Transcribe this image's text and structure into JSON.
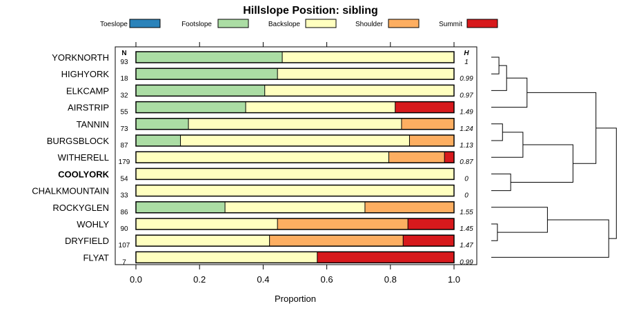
{
  "chart_data": {
    "type": "bar",
    "orientation": "horizontal",
    "stacked": true,
    "title": "Hillslope Position: sibling",
    "xlabel": "Proportion",
    "ylabel": "",
    "xlim": [
      0,
      1
    ],
    "x_ticks": [
      "0.0",
      "0.2",
      "0.4",
      "0.6",
      "0.8",
      "1.0"
    ],
    "n_header": "N",
    "h_header": "H",
    "highlighted": "COOLYORK",
    "legend_position": "top",
    "series": [
      {
        "name": "Toeslope",
        "color": "#2b83ba"
      },
      {
        "name": "Footslope",
        "color": "#abdda4"
      },
      {
        "name": "Backslope",
        "color": "#ffffbf"
      },
      {
        "name": "Shoulder",
        "color": "#fdae61"
      },
      {
        "name": "Summit",
        "color": "#d7191c"
      }
    ],
    "categories": [
      {
        "name": "YORKNORTH",
        "n": "93",
        "h": "1",
        "values": [
          0,
          0.46,
          0.54,
          0,
          0
        ]
      },
      {
        "name": "HIGHYORK",
        "n": "18",
        "h": "0.99",
        "values": [
          0,
          0.445,
          0.555,
          0,
          0
        ]
      },
      {
        "name": "ELKCAMP",
        "n": "32",
        "h": "0.97",
        "values": [
          0,
          0.405,
          0.595,
          0,
          0
        ]
      },
      {
        "name": "AIRSTRIP",
        "n": "55",
        "h": "1.49",
        "values": [
          0,
          0.345,
          0.47,
          0,
          0.185
        ]
      },
      {
        "name": "TANNIN",
        "n": "73",
        "h": "1.24",
        "values": [
          0,
          0.165,
          0.67,
          0.165,
          0
        ]
      },
      {
        "name": "BURGSBLOCK",
        "n": "87",
        "h": "1.13",
        "values": [
          0,
          0.14,
          0.72,
          0.14,
          0
        ]
      },
      {
        "name": "WITHERELL",
        "n": "179",
        "h": "0.87",
        "values": [
          0,
          0,
          0.795,
          0.175,
          0.03
        ]
      },
      {
        "name": "COOLYORK",
        "n": "54",
        "h": "0",
        "values": [
          0,
          0,
          1,
          0,
          0
        ]
      },
      {
        "name": "CHALKMOUNTAIN",
        "n": "33",
        "h": "0",
        "values": [
          0,
          0,
          1,
          0,
          0
        ]
      },
      {
        "name": "ROCKYGLEN",
        "n": "86",
        "h": "1.55",
        "values": [
          0,
          0.28,
          0.44,
          0.28,
          0
        ]
      },
      {
        "name": "WOHLY",
        "n": "90",
        "h": "1.45",
        "values": [
          0,
          0,
          0.445,
          0.41,
          0.145
        ]
      },
      {
        "name": "DRYFIELD",
        "n": "107",
        "h": "1.47",
        "values": [
          0,
          0,
          0.42,
          0.42,
          0.16
        ]
      },
      {
        "name": "FLYAT",
        "n": "7",
        "h": "0.99",
        "values": [
          0,
          0,
          0.57,
          0,
          0.43
        ]
      }
    ],
    "dendrogram": {
      "description": "hierarchical clustering of rows",
      "merges": [
        {
          "a": 0,
          "b": 1,
          "height": 0.15
        },
        {
          "a": "m0",
          "b": 2,
          "height": 0.3
        },
        {
          "a": "m1",
          "b": 3,
          "height": 0.7
        },
        {
          "a": 4,
          "b": 5,
          "height": 0.22
        },
        {
          "a": "m3",
          "b": 6,
          "height": 0.62
        },
        {
          "a": 7,
          "b": 8,
          "height": 0.38
        },
        {
          "a": "m4",
          "b": "m5",
          "height": 1.6
        },
        {
          "a": 10,
          "b": 11,
          "height": 0.12
        },
        {
          "a": 9,
          "b": "m7",
          "height": 1.1
        },
        {
          "a": "m8",
          "b": 12,
          "height": 2.3
        },
        {
          "a": "m2",
          "b": "m6",
          "height": 2.05
        },
        {
          "a": "m10",
          "b": "m9",
          "height": 2.45
        }
      ]
    }
  }
}
